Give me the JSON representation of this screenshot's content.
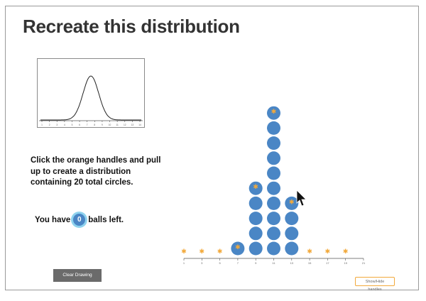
{
  "title": "Recreate this distribution",
  "instructions": "Click the orange handles and pull up to create a distribution containing 20 total circles.",
  "balls_left": {
    "prefix": "You have",
    "count": "0",
    "suffix": "balls left."
  },
  "buttons": {
    "clear": "Clear Drawing",
    "show_hide": "Show/Hide handles"
  },
  "reference_plot": {
    "x_ticks": [
      "1",
      "2",
      "3",
      "4",
      "5",
      "6",
      "7",
      "8",
      "9",
      "10",
      "11",
      "12",
      "13",
      "14"
    ]
  },
  "dot_plot": {
    "x_ticks": [
      "1",
      "3",
      "5",
      "7",
      "9",
      "11",
      "13",
      "15",
      "17",
      "19",
      "21"
    ],
    "columns": [
      {
        "x": 1,
        "count": 0
      },
      {
        "x": 3,
        "count": 0
      },
      {
        "x": 5,
        "count": 0
      },
      {
        "x": 7,
        "count": 1
      },
      {
        "x": 9,
        "count": 5
      },
      {
        "x": 11,
        "count": 10
      },
      {
        "x": 13,
        "count": 4
      },
      {
        "x": 15,
        "count": 0
      },
      {
        "x": 17,
        "count": 0
      },
      {
        "x": 19,
        "count": 0
      }
    ]
  },
  "colors": {
    "ball": "#4a86c5",
    "handle": "#f2a93b",
    "ball_highlight": "#8fd3ee"
  }
}
